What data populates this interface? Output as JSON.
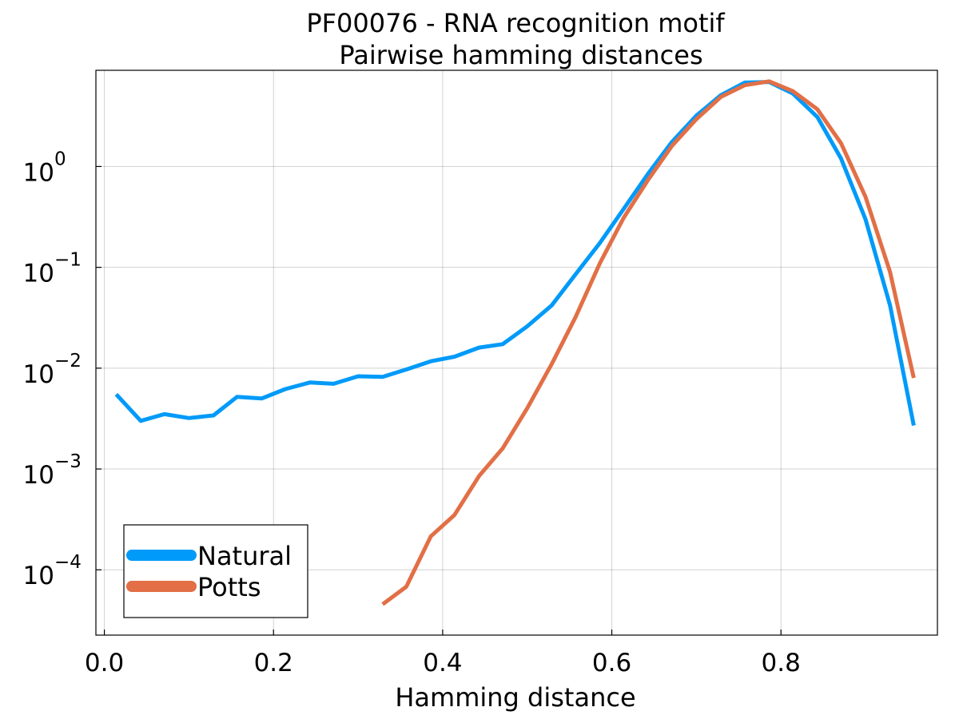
{
  "chart_data": {
    "type": "line",
    "title": [
      "PF00076 - RNA recognition motif",
      "Pairwise hamming distances"
    ],
    "xlabel": "Hamming distance",
    "ylabel": "",
    "xlim": [
      -0.01,
      0.985
    ],
    "ylim": [
      2.25e-05,
      9
    ],
    "yscale": "log",
    "grid": true,
    "legend_position": "bottom-left",
    "x_ticks": [
      {
        "value": 0.0,
        "label": "0.0"
      },
      {
        "value": 0.2,
        "label": "0.2"
      },
      {
        "value": 0.4,
        "label": "0.4"
      },
      {
        "value": 0.6,
        "label": "0.6"
      },
      {
        "value": 0.8,
        "label": "0.8"
      }
    ],
    "y_ticks": [
      {
        "value": 1,
        "base": "10",
        "exp": "0"
      },
      {
        "value": 0.1,
        "base": "10",
        "exp": "−1"
      },
      {
        "value": 0.01,
        "base": "10",
        "exp": "−2"
      },
      {
        "value": 0.001,
        "base": "10",
        "exp": "−3"
      },
      {
        "value": 0.0001,
        "base": "10",
        "exp": "−4"
      }
    ],
    "series": [
      {
        "name": "Natural",
        "color": "#009af9",
        "x": [
          0.014,
          0.043,
          0.071,
          0.1,
          0.129,
          0.157,
          0.186,
          0.214,
          0.243,
          0.271,
          0.3,
          0.329,
          0.357,
          0.386,
          0.414,
          0.443,
          0.471,
          0.5,
          0.529,
          0.557,
          0.586,
          0.614,
          0.643,
          0.671,
          0.7,
          0.729,
          0.757,
          0.786,
          0.814,
          0.843,
          0.871,
          0.9,
          0.929,
          0.957
        ],
        "y": [
          0.0055,
          0.003,
          0.0035,
          0.0032,
          0.0034,
          0.0052,
          0.005,
          0.0062,
          0.0072,
          0.007,
          0.0083,
          0.0082,
          0.0097,
          0.0117,
          0.013,
          0.016,
          0.0173,
          0.026,
          0.042,
          0.085,
          0.175,
          0.38,
          0.85,
          1.75,
          3.2,
          5.1,
          6.8,
          6.9,
          5.3,
          3.1,
          1.2,
          0.3,
          0.042,
          0.0027
        ]
      },
      {
        "name": "Potts",
        "color": "#e26f46",
        "x": [
          0.329,
          0.357,
          0.386,
          0.414,
          0.443,
          0.471,
          0.5,
          0.529,
          0.557,
          0.586,
          0.614,
          0.643,
          0.671,
          0.7,
          0.729,
          0.757,
          0.786,
          0.814,
          0.843,
          0.871,
          0.9,
          0.929,
          0.957
        ],
        "y": [
          4.55e-05,
          6.8e-05,
          0.000215,
          0.00035,
          0.00085,
          0.0016,
          0.004,
          0.011,
          0.032,
          0.11,
          0.31,
          0.74,
          1.6,
          2.95,
          4.9,
          6.4,
          7.0,
          5.6,
          3.7,
          1.7,
          0.5,
          0.09,
          0.008
        ]
      }
    ]
  }
}
